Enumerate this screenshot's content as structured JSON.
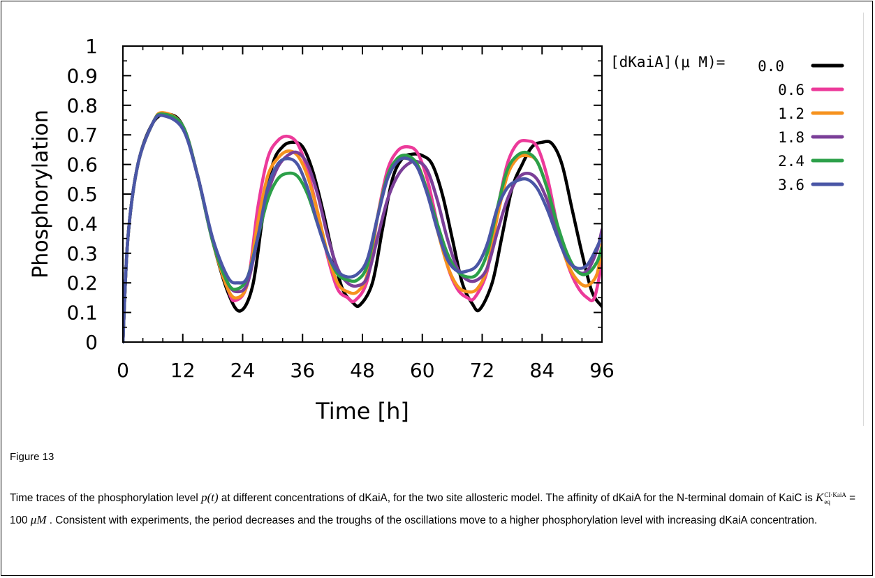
{
  "chart_data": {
    "type": "line",
    "xlabel": "Time [h]",
    "ylabel": "Phosphorylation",
    "xlim": [
      0,
      96
    ],
    "ylim": [
      0,
      1
    ],
    "x_ticks": [
      "0",
      "12",
      "24",
      "36",
      "48",
      "60",
      "72",
      "84",
      "96"
    ],
    "y_ticks": [
      "0",
      "0.1",
      "0.2",
      "0.3",
      "0.4",
      "0.5",
      "0.6",
      "0.7",
      "0.8",
      "0.9",
      "1"
    ],
    "legend_title": "[dKaiA](μ M)=",
    "legend_position": "right",
    "grid": false,
    "series": [
      {
        "name": "0.0",
        "color": "#000000",
        "x": [
          0,
          1,
          3,
          6,
          9,
          12,
          15,
          18,
          21,
          23.5,
          26,
          28,
          30,
          32,
          34,
          36,
          38,
          40,
          42,
          44,
          46,
          47.5,
          50,
          52,
          54,
          56,
          58,
          60,
          62,
          64,
          66,
          68,
          70,
          71.5,
          74,
          76,
          78,
          80,
          82,
          84,
          86,
          88,
          90,
          92,
          94,
          96
        ],
        "y": [
          0,
          0.35,
          0.6,
          0.74,
          0.77,
          0.73,
          0.56,
          0.34,
          0.17,
          0.105,
          0.19,
          0.42,
          0.6,
          0.66,
          0.675,
          0.66,
          0.58,
          0.45,
          0.3,
          0.18,
          0.135,
          0.125,
          0.2,
          0.38,
          0.55,
          0.62,
          0.635,
          0.63,
          0.6,
          0.5,
          0.35,
          0.2,
          0.13,
          0.11,
          0.2,
          0.36,
          0.52,
          0.6,
          0.66,
          0.675,
          0.67,
          0.6,
          0.45,
          0.3,
          0.17,
          0.12
        ]
      },
      {
        "name": "0.6",
        "color": "#ec3a9a",
        "x": [
          0,
          1,
          3,
          6,
          8,
          12,
          15,
          18,
          21,
          22.5,
          25,
          27,
          29,
          31,
          33,
          35,
          37,
          39,
          41,
          43,
          45,
          46.5,
          49,
          51,
          53,
          55,
          57,
          59,
          61,
          63,
          65,
          67,
          69,
          70.5,
          73,
          75,
          77,
          79,
          81,
          83,
          85,
          87,
          89,
          91,
          93,
          94.5,
          96
        ],
        "y": [
          0,
          0.35,
          0.6,
          0.74,
          0.77,
          0.73,
          0.56,
          0.34,
          0.18,
          0.14,
          0.2,
          0.45,
          0.62,
          0.68,
          0.695,
          0.67,
          0.58,
          0.44,
          0.29,
          0.18,
          0.15,
          0.14,
          0.21,
          0.42,
          0.58,
          0.645,
          0.66,
          0.64,
          0.55,
          0.4,
          0.26,
          0.18,
          0.15,
          0.15,
          0.24,
          0.44,
          0.6,
          0.67,
          0.68,
          0.66,
          0.56,
          0.4,
          0.27,
          0.19,
          0.15,
          0.15,
          0.27
        ]
      },
      {
        "name": "1.2",
        "color": "#f6921e",
        "x": [
          0,
          1,
          3,
          6,
          8,
          12,
          15,
          18,
          21,
          23,
          25,
          27,
          29,
          31,
          33,
          35,
          37,
          39,
          41,
          43,
          45,
          47,
          49,
          51,
          53,
          55,
          57,
          59,
          61,
          63,
          65,
          67,
          69,
          71,
          73,
          75,
          77,
          79,
          81,
          83,
          85,
          87,
          89,
          91,
          93,
          95,
          96
        ],
        "y": [
          0,
          0.35,
          0.6,
          0.74,
          0.775,
          0.73,
          0.56,
          0.34,
          0.18,
          0.15,
          0.2,
          0.4,
          0.56,
          0.62,
          0.645,
          0.63,
          0.56,
          0.44,
          0.3,
          0.2,
          0.17,
          0.17,
          0.23,
          0.42,
          0.56,
          0.615,
          0.62,
          0.6,
          0.51,
          0.38,
          0.26,
          0.19,
          0.17,
          0.18,
          0.25,
          0.42,
          0.56,
          0.62,
          0.63,
          0.61,
          0.52,
          0.38,
          0.27,
          0.21,
          0.19,
          0.23,
          0.33
        ]
      },
      {
        "name": "1.8",
        "color": "#7b3f98",
        "x": [
          0,
          1,
          3,
          6,
          8,
          12,
          15,
          18,
          21,
          23,
          25,
          27,
          29,
          31,
          33,
          35,
          37,
          39,
          41,
          43,
          45,
          47,
          49,
          51,
          53,
          55,
          57,
          59,
          61,
          63,
          65,
          67,
          69,
          71,
          73,
          75,
          77,
          79,
          81,
          83,
          85,
          87,
          89,
          91,
          93,
          95,
          96
        ],
        "y": [
          0,
          0.35,
          0.6,
          0.74,
          0.77,
          0.73,
          0.56,
          0.34,
          0.2,
          0.17,
          0.2,
          0.35,
          0.5,
          0.59,
          0.63,
          0.64,
          0.6,
          0.5,
          0.36,
          0.25,
          0.2,
          0.19,
          0.22,
          0.35,
          0.48,
          0.56,
          0.6,
          0.61,
          0.58,
          0.48,
          0.35,
          0.25,
          0.21,
          0.21,
          0.25,
          0.37,
          0.48,
          0.55,
          0.57,
          0.55,
          0.48,
          0.38,
          0.29,
          0.24,
          0.24,
          0.31,
          0.38
        ]
      },
      {
        "name": "2.4",
        "color": "#2ca049",
        "x": [
          0,
          1,
          3,
          6,
          8,
          12,
          15,
          18,
          21,
          23,
          25,
          27,
          29,
          31,
          33,
          35,
          37,
          39,
          41,
          43,
          45,
          47,
          49,
          51,
          53,
          55,
          57,
          59,
          61,
          63,
          65,
          67,
          69,
          71,
          73,
          75,
          77,
          79,
          81,
          83,
          85,
          87,
          89,
          91,
          93,
          95,
          96
        ],
        "y": [
          0,
          0.35,
          0.6,
          0.74,
          0.77,
          0.73,
          0.56,
          0.34,
          0.2,
          0.18,
          0.22,
          0.35,
          0.48,
          0.55,
          0.57,
          0.56,
          0.5,
          0.4,
          0.3,
          0.23,
          0.21,
          0.21,
          0.26,
          0.42,
          0.56,
          0.62,
          0.63,
          0.6,
          0.51,
          0.4,
          0.3,
          0.24,
          0.22,
          0.23,
          0.3,
          0.45,
          0.58,
          0.63,
          0.64,
          0.61,
          0.52,
          0.4,
          0.3,
          0.24,
          0.23,
          0.27,
          0.32
        ]
      },
      {
        "name": "3.6",
        "color": "#4a56a6",
        "x": [
          0,
          1,
          3,
          6,
          8,
          12,
          15,
          18,
          21,
          23,
          25,
          27,
          29,
          31,
          33,
          35,
          37,
          39,
          41,
          43,
          45,
          47,
          49,
          51,
          53,
          55,
          57,
          59,
          61,
          63,
          65,
          67,
          69,
          71,
          73,
          75,
          77,
          79,
          81,
          83,
          85,
          87,
          89,
          91,
          93,
          95,
          96
        ],
        "y": [
          0,
          0.35,
          0.6,
          0.74,
          0.765,
          0.72,
          0.56,
          0.35,
          0.22,
          0.2,
          0.22,
          0.35,
          0.52,
          0.6,
          0.62,
          0.6,
          0.52,
          0.4,
          0.3,
          0.24,
          0.22,
          0.23,
          0.28,
          0.42,
          0.55,
          0.61,
          0.62,
          0.59,
          0.5,
          0.38,
          0.28,
          0.24,
          0.24,
          0.26,
          0.33,
          0.45,
          0.52,
          0.545,
          0.55,
          0.52,
          0.45,
          0.36,
          0.28,
          0.25,
          0.26,
          0.32,
          0.36
        ]
      }
    ]
  },
  "figure_label": "Figure 13",
  "caption": {
    "part1": "Time traces of the phosphorylation level ",
    "p_of_t": "p(t)",
    "part2": " at different concentrations of dKaiA, for the two site allosteric model. The affinity of dKaiA for the N-terminal domain of KaiC is ",
    "k_symbol": "K",
    "k_sup": "CI·KaiA",
    "k_sub": "eq",
    "part3": " = 100 ",
    "unit": "μM",
    "part4": " . Consistent with experiments, the period decreases and the troughs of the oscillations move to a higher phosphorylation level with increasing dKaiA concentration."
  }
}
